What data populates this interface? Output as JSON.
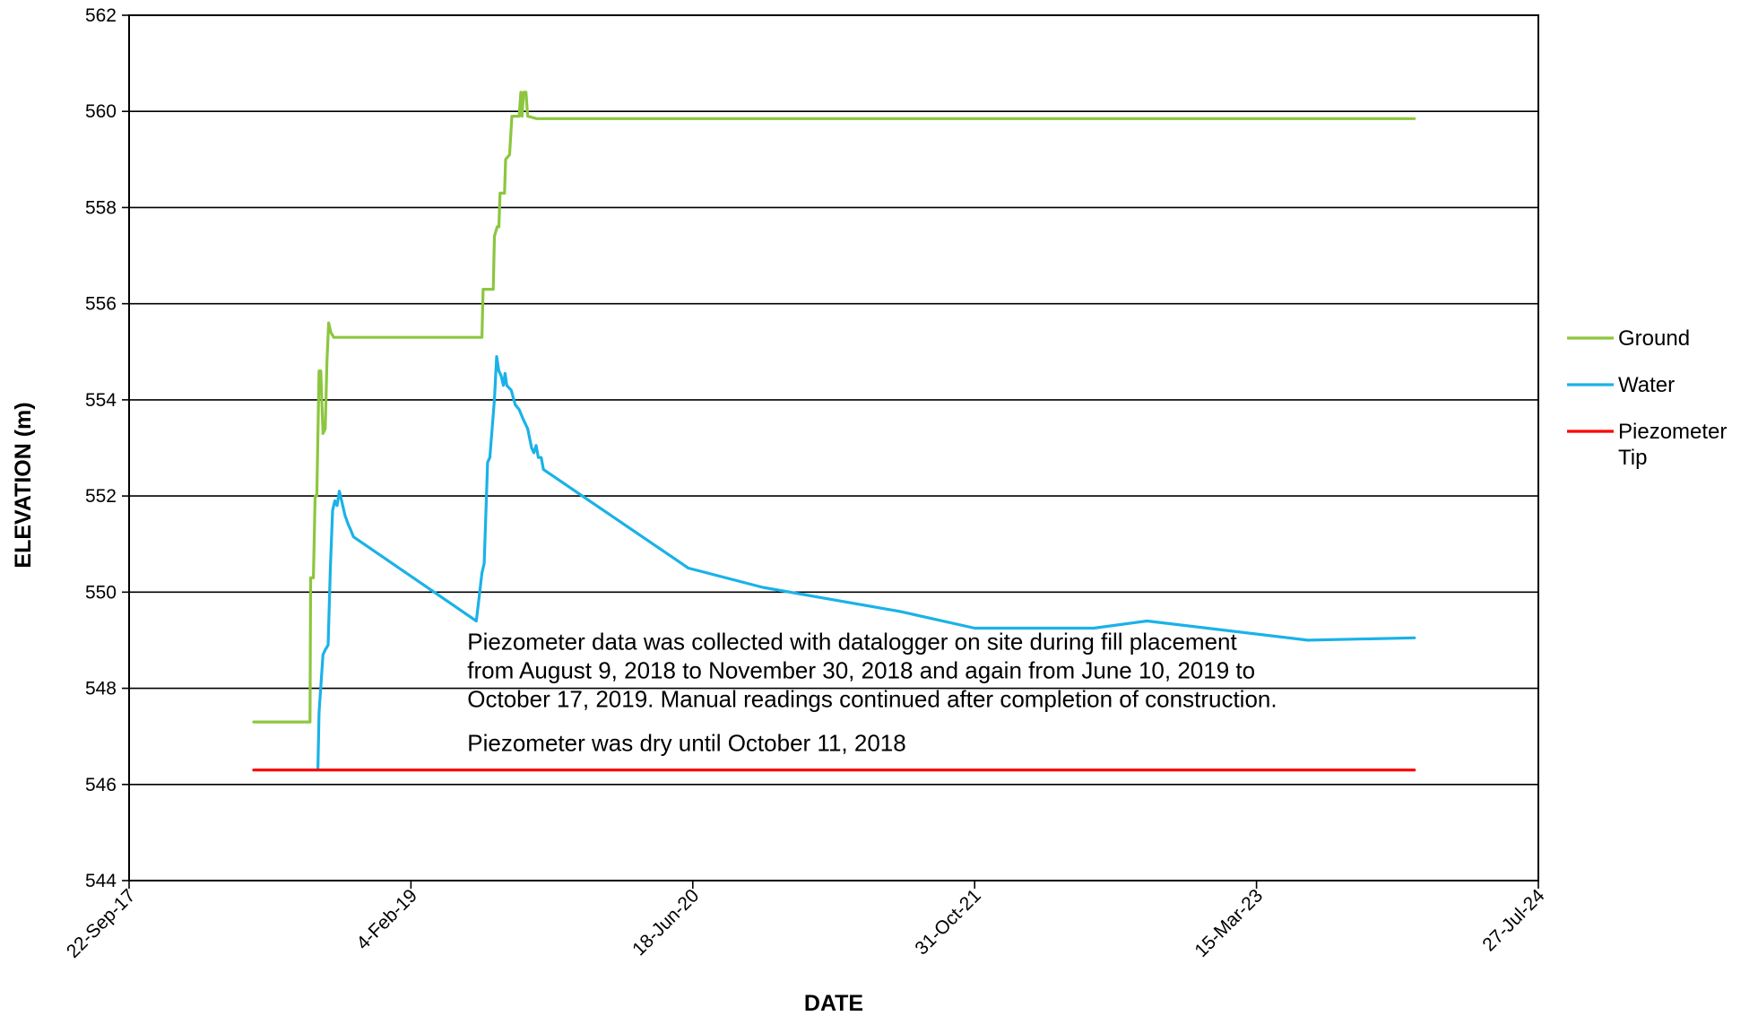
{
  "chart_data": {
    "type": "line",
    "xlabel": "DATE",
    "ylabel": "ELEVATION (m)",
    "xlim": [
      "2017-09-22",
      "2024-07-27"
    ],
    "ylim": [
      544,
      562
    ],
    "x_ticks": [
      "22-Sep-17",
      "4-Feb-19",
      "18-Jun-20",
      "31-Oct-21",
      "15-Mar-23",
      "27-Jul-24"
    ],
    "y_ticks": [
      544,
      546,
      548,
      550,
      552,
      554,
      556,
      558,
      560,
      562
    ],
    "grid": "horizontal",
    "legend_position": "right",
    "series": [
      {
        "name": "Ground",
        "color": "#8cc63f",
        "points": [
          [
            "2018-05-01",
            547.3
          ],
          [
            "2018-08-09",
            547.3
          ],
          [
            "2018-08-10",
            550.3
          ],
          [
            "2018-08-15",
            550.3
          ],
          [
            "2018-08-18",
            552.0
          ],
          [
            "2018-08-21",
            552.0
          ],
          [
            "2018-08-25",
            554.6
          ],
          [
            "2018-08-28",
            554.6
          ],
          [
            "2018-09-01",
            553.3
          ],
          [
            "2018-09-05",
            553.4
          ],
          [
            "2018-09-08",
            554.8
          ],
          [
            "2018-09-11",
            555.6
          ],
          [
            "2018-09-15",
            555.4
          ],
          [
            "2018-09-20",
            555.3
          ],
          [
            "2018-10-20",
            555.3
          ],
          [
            "2018-12-31",
            555.3
          ],
          [
            "2019-05-31",
            555.3
          ],
          [
            "2019-06-10",
            555.3
          ],
          [
            "2019-06-12",
            556.3
          ],
          [
            "2019-06-30",
            556.3
          ],
          [
            "2019-07-02",
            557.4
          ],
          [
            "2019-07-07",
            557.6
          ],
          [
            "2019-07-10",
            557.6
          ],
          [
            "2019-07-12",
            558.3
          ],
          [
            "2019-07-20",
            558.3
          ],
          [
            "2019-07-22",
            559.0
          ],
          [
            "2019-07-29",
            559.1
          ],
          [
            "2019-08-02",
            559.9
          ],
          [
            "2019-08-15",
            559.9
          ],
          [
            "2019-08-18",
            560.4
          ],
          [
            "2019-08-20",
            559.9
          ],
          [
            "2019-08-23",
            560.4
          ],
          [
            "2019-08-27",
            560.4
          ],
          [
            "2019-08-30",
            559.9
          ],
          [
            "2019-09-15",
            559.85
          ],
          [
            "2020-06-18",
            559.85
          ],
          [
            "2021-10-31",
            559.85
          ],
          [
            "2023-03-15",
            559.85
          ],
          [
            "2023-12-20",
            559.85
          ]
        ]
      },
      {
        "name": "Water",
        "color": "#1ab2e8",
        "points": [
          [
            "2018-08-23",
            546.3
          ],
          [
            "2018-08-25",
            547.5
          ],
          [
            "2018-09-01",
            548.7
          ],
          [
            "2018-09-05",
            548.8
          ],
          [
            "2018-09-10",
            548.9
          ],
          [
            "2018-09-14",
            550.5
          ],
          [
            "2018-09-18",
            551.7
          ],
          [
            "2018-09-22",
            551.9
          ],
          [
            "2018-09-26",
            551.8
          ],
          [
            "2018-09-30",
            552.1
          ],
          [
            "2018-10-04",
            551.9
          ],
          [
            "2018-10-10",
            551.6
          ],
          [
            "2018-10-16",
            551.4
          ],
          [
            "2018-10-20",
            551.3
          ],
          [
            "2018-10-25",
            551.15
          ],
          [
            "2019-05-31",
            549.4
          ],
          [
            "2019-06-05",
            549.9
          ],
          [
            "2019-06-10",
            550.4
          ],
          [
            "2019-06-14",
            550.6
          ],
          [
            "2019-06-20",
            552.7
          ],
          [
            "2019-06-24",
            552.8
          ],
          [
            "2019-07-02",
            554.0
          ],
          [
            "2019-07-06",
            554.9
          ],
          [
            "2019-07-10",
            554.6
          ],
          [
            "2019-07-14",
            554.5
          ],
          [
            "2019-07-18",
            554.3
          ],
          [
            "2019-07-21",
            554.55
          ],
          [
            "2019-07-24",
            554.3
          ],
          [
            "2019-08-01",
            554.2
          ],
          [
            "2019-08-08",
            553.9
          ],
          [
            "2019-08-15",
            553.8
          ],
          [
            "2019-08-22",
            553.6
          ],
          [
            "2019-08-30",
            553.4
          ],
          [
            "2019-09-06",
            553.0
          ],
          [
            "2019-09-10",
            552.9
          ],
          [
            "2019-09-14",
            553.05
          ],
          [
            "2019-09-18",
            552.8
          ],
          [
            "2019-09-23",
            552.8
          ],
          [
            "2019-09-27",
            552.55
          ],
          [
            "2020-06-10",
            550.5
          ],
          [
            "2020-10-20",
            550.1
          ],
          [
            "2021-06-20",
            549.6
          ],
          [
            "2021-10-31",
            549.25
          ],
          [
            "2022-05-30",
            549.25
          ],
          [
            "2022-09-02",
            549.4
          ],
          [
            "2023-06-14",
            549.0
          ],
          [
            "2023-12-20",
            549.05
          ]
        ]
      },
      {
        "name": "Piezometer Tip",
        "color": "#ff0000",
        "points": [
          [
            "2018-05-01",
            546.3
          ],
          [
            "2023-12-20",
            546.3
          ]
        ]
      }
    ],
    "annotations": [
      {
        "lines": [
          "Piezometer data was collected with datalogger on site during fill placement",
          "from August 9, 2018 to November 30, 2018 and again from June 10, 2019 to",
          "October 17, 2019. Manual readings continued after completion of construction."
        ],
        "x": "2019-05-15",
        "y": 548.8
      },
      {
        "lines": [
          "Piezometer was dry until October 11, 2018"
        ],
        "x": "2019-05-15",
        "y": 546.7
      }
    ]
  }
}
